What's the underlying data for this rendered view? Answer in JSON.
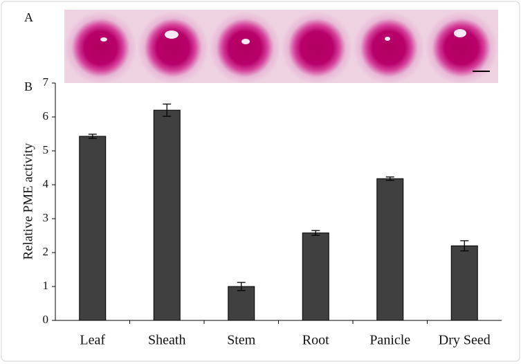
{
  "panel_labels": [
    "A",
    "B"
  ],
  "chart_data": {
    "type": "bar",
    "y_label": "Relative PME activity",
    "categories": [
      "Leaf",
      "Sheath",
      "Stem",
      "Root",
      "Panicle",
      "Dry Seed"
    ],
    "values": [
      5.43,
      6.2,
      1.0,
      2.58,
      4.18,
      2.2
    ],
    "errors": [
      0.06,
      0.18,
      0.12,
      0.07,
      0.05,
      0.15
    ],
    "color": "#404040",
    "ylim": [
      0,
      7
    ],
    "yticks": [
      0,
      1,
      2,
      3,
      4,
      5,
      6,
      7
    ]
  }
}
